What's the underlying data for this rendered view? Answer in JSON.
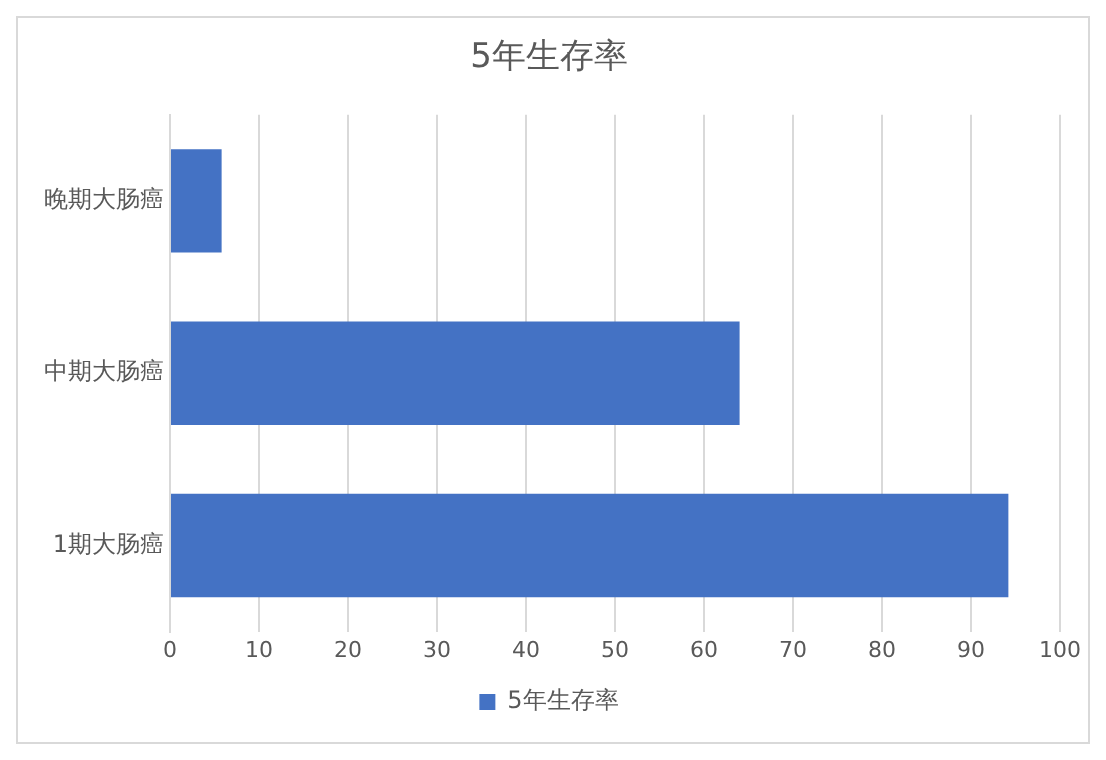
{
  "chart_data": {
    "type": "bar",
    "orientation": "horizontal",
    "title": "5年生存率",
    "categories": [
      "晚期大肠癌",
      "中期大肠癌",
      "1期大肠癌"
    ],
    "series": [
      {
        "name": "5年生存率",
        "color": "#4472c4",
        "values": [
          5.8,
          64,
          94.2
        ]
      }
    ],
    "xlim": [
      0,
      100
    ],
    "xticks": [
      0,
      10,
      20,
      30,
      40,
      50,
      60,
      70,
      80,
      90,
      100
    ],
    "grid": "x",
    "legend": "bottom"
  }
}
